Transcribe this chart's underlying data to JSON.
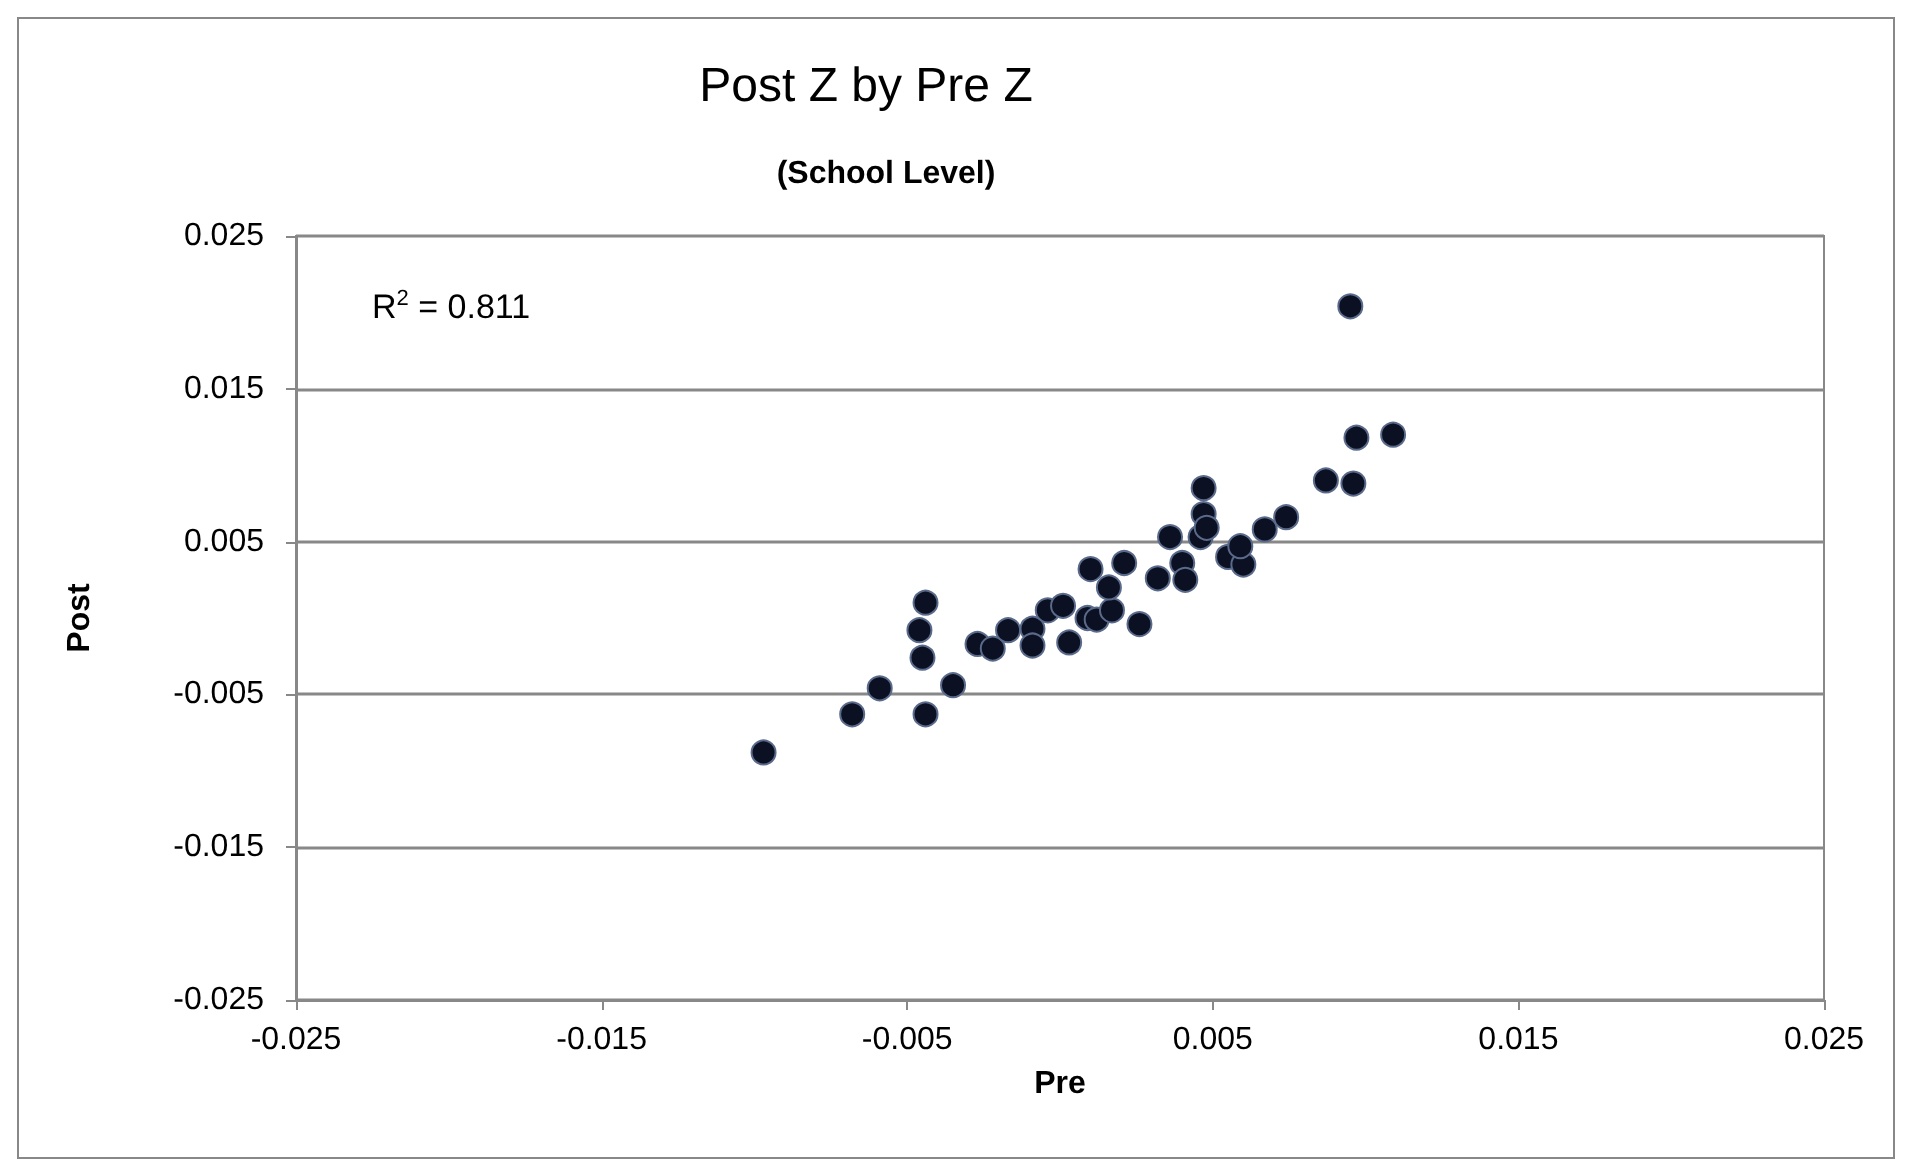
{
  "chart_data": {
    "type": "scatter",
    "title": "Post Z by Pre Z",
    "subtitle": "(School Level)",
    "xlabel": "Pre",
    "ylabel": "Post",
    "annotations": [
      "R$^{2}$ = 0.811"
    ],
    "x": [
      -0.0097,
      -0.0068,
      -0.0059,
      -0.0044,
      -0.0035,
      -0.0044,
      -0.0046,
      -0.0045,
      -0.0027,
      -0.0022,
      -0.0017,
      -0.0009,
      -0.0009,
      -0.0004,
      0.0001,
      0.0003,
      0.0009,
      0.0012,
      0.0017,
      0.001,
      0.0016,
      0.0021,
      0.0026,
      0.0032,
      0.0036,
      0.004,
      0.0041,
      0.0046,
      0.0047,
      0.0047,
      0.0048,
      0.0055,
      0.006,
      0.0059,
      0.0067,
      0.0074,
      0.0087,
      0.0096,
      0.0097,
      0.0095,
      0.0109
    ],
    "values": [
      -0.0088,
      -0.0063,
      -0.0046,
      -0.0063,
      -0.0044,
      0.001,
      -0.0008,
      -0.0026,
      -0.0017,
      -0.002,
      -0.0008,
      -0.0007,
      -0.0018,
      0.0005,
      0.0008,
      -0.0016,
      0,
      -0.0001,
      0.0005,
      0.0032,
      0.002,
      0.0036,
      -0.0004,
      0.0026,
      0.0053,
      0.0036,
      0.0025,
      0.0053,
      0.0068,
      0.0085,
      0.0059,
      0.004,
      0.0035,
      0.0047,
      0.0058,
      0.0066,
      0.009,
      0.0088,
      0.0118,
      0.0204,
      0.012
    ],
    "color": "#0b1022",
    "marker": "circle",
    "xlim": [
      -0.025,
      0.025
    ],
    "xticks": [
      -0.025,
      -0.015,
      -0.005,
      0.005,
      0.015,
      0.025
    ],
    "ylim": [
      -0.025,
      0.025
    ],
    "yticks": [
      -0.025,
      -0.015,
      -0.005,
      0.005,
      0.015,
      0.025
    ],
    "grid": "y"
  }
}
